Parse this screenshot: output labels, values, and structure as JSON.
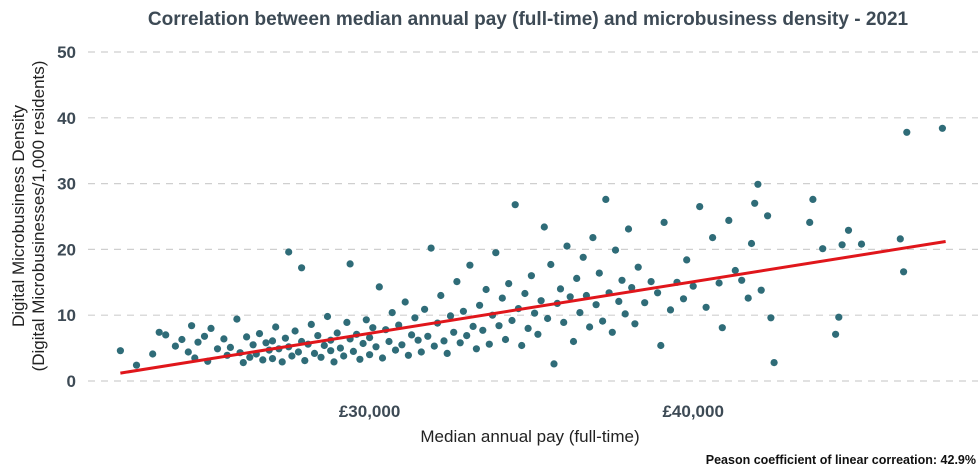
{
  "chart_data": {
    "type": "scatter",
    "title": "Correlation between median annual pay (full-time) and microbusiness density - 2021",
    "xlabel": "Median annual pay (full-time)",
    "ylabel_line1": "Digital Microbusiness Density",
    "ylabel_line2": "(Digital Microbusinesses/1,000 residents)",
    "caption": "Peason coefficient of linear correation: 42.9%",
    "xlim": [
      21300,
      48800
    ],
    "ylim": [
      0,
      50
    ],
    "x_ticks": [
      {
        "value": 30000,
        "label": "£30,000"
      },
      {
        "value": 40000,
        "label": "£40,000"
      }
    ],
    "y_ticks": [
      {
        "value": 0,
        "label": "0"
      },
      {
        "value": 10,
        "label": "10"
      },
      {
        "value": 20,
        "label": "20"
      },
      {
        "value": 30,
        "label": "30"
      },
      {
        "value": 40,
        "label": "40"
      },
      {
        "value": 50,
        "label": "50"
      }
    ],
    "grid": "horizontal dashed",
    "point_color": "#2f6c78",
    "trend_color": "#e0161b",
    "trend_line": {
      "x": [
        22300,
        47800
      ],
      "y": [
        1.2,
        21.2
      ]
    },
    "points": [
      [
        22300,
        4.6
      ],
      [
        22800,
        2.4
      ],
      [
        23300,
        4.1
      ],
      [
        23500,
        7.4
      ],
      [
        23700,
        7.0
      ],
      [
        24000,
        5.3
      ],
      [
        24200,
        6.3
      ],
      [
        24400,
        4.4
      ],
      [
        24500,
        8.4
      ],
      [
        24600,
        3.5
      ],
      [
        24700,
        5.9
      ],
      [
        24900,
        6.8
      ],
      [
        25000,
        3.0
      ],
      [
        25100,
        8.0
      ],
      [
        25300,
        4.9
      ],
      [
        25500,
        6.4
      ],
      [
        25600,
        3.9
      ],
      [
        25700,
        5.1
      ],
      [
        25900,
        9.4
      ],
      [
        26000,
        4.3
      ],
      [
        26100,
        2.8
      ],
      [
        26200,
        6.7
      ],
      [
        26300,
        3.6
      ],
      [
        26400,
        5.5
      ],
      [
        26500,
        4.1
      ],
      [
        26600,
        7.2
      ],
      [
        26700,
        3.2
      ],
      [
        26800,
        5.8
      ],
      [
        26900,
        4.7
      ],
      [
        27000,
        6.1
      ],
      [
        27000,
        3.4
      ],
      [
        27100,
        8.2
      ],
      [
        27200,
        4.9
      ],
      [
        27300,
        2.9
      ],
      [
        27400,
        6.5
      ],
      [
        27500,
        5.2
      ],
      [
        27500,
        19.6
      ],
      [
        27600,
        3.8
      ],
      [
        27700,
        7.6
      ],
      [
        27800,
        4.4
      ],
      [
        27900,
        6.0
      ],
      [
        27900,
        17.2
      ],
      [
        28000,
        3.1
      ],
      [
        28100,
        5.6
      ],
      [
        28200,
        8.6
      ],
      [
        28300,
        4.2
      ],
      [
        28400,
        6.9
      ],
      [
        28500,
        3.6
      ],
      [
        28600,
        5.4
      ],
      [
        28700,
        9.8
      ],
      [
        28800,
        4.6
      ],
      [
        28800,
        6.2
      ],
      [
        28900,
        2.9
      ],
      [
        29000,
        7.3
      ],
      [
        29100,
        5.0
      ],
      [
        29200,
        3.8
      ],
      [
        29300,
        8.9
      ],
      [
        29400,
        6.4
      ],
      [
        29400,
        17.8
      ],
      [
        29500,
        4.5
      ],
      [
        29600,
        7.1
      ],
      [
        29700,
        3.3
      ],
      [
        29800,
        5.7
      ],
      [
        29900,
        9.3
      ],
      [
        30000,
        6.6
      ],
      [
        30000,
        4.0
      ],
      [
        30100,
        8.1
      ],
      [
        30200,
        5.2
      ],
      [
        30300,
        14.3
      ],
      [
        30400,
        3.5
      ],
      [
        30500,
        7.8
      ],
      [
        30600,
        6.0
      ],
      [
        30700,
        10.4
      ],
      [
        30800,
        4.7
      ],
      [
        30900,
        8.5
      ],
      [
        31000,
        5.5
      ],
      [
        31100,
        12.0
      ],
      [
        31200,
        3.9
      ],
      [
        31300,
        7.0
      ],
      [
        31400,
        9.6
      ],
      [
        31500,
        6.2
      ],
      [
        31600,
        4.4
      ],
      [
        31700,
        10.9
      ],
      [
        31800,
        6.8
      ],
      [
        31900,
        20.2
      ],
      [
        32000,
        5.3
      ],
      [
        32100,
        8.8
      ],
      [
        32200,
        13.0
      ],
      [
        32300,
        6.1
      ],
      [
        32400,
        4.2
      ],
      [
        32500,
        9.9
      ],
      [
        32600,
        7.4
      ],
      [
        32700,
        15.1
      ],
      [
        32800,
        5.8
      ],
      [
        32900,
        10.6
      ],
      [
        33000,
        6.9
      ],
      [
        33100,
        17.6
      ],
      [
        33200,
        8.3
      ],
      [
        33300,
        4.9
      ],
      [
        33400,
        11.5
      ],
      [
        33500,
        7.7
      ],
      [
        33600,
        13.9
      ],
      [
        33700,
        5.6
      ],
      [
        33800,
        10.0
      ],
      [
        33900,
        19.5
      ],
      [
        34000,
        8.4
      ],
      [
        34100,
        12.6
      ],
      [
        34200,
        6.3
      ],
      [
        34300,
        14.8
      ],
      [
        34400,
        9.2
      ],
      [
        34500,
        26.8
      ],
      [
        34600,
        11.0
      ],
      [
        34700,
        5.4
      ],
      [
        34800,
        13.3
      ],
      [
        34900,
        8.0
      ],
      [
        35000,
        16.0
      ],
      [
        35100,
        10.3
      ],
      [
        35200,
        7.1
      ],
      [
        35300,
        12.2
      ],
      [
        35400,
        23.4
      ],
      [
        35500,
        9.5
      ],
      [
        35600,
        17.7
      ],
      [
        35700,
        2.6
      ],
      [
        35800,
        11.8
      ],
      [
        35900,
        14.0
      ],
      [
        36000,
        8.9
      ],
      [
        36100,
        20.5
      ],
      [
        36200,
        12.8
      ],
      [
        36300,
        6.0
      ],
      [
        36400,
        15.6
      ],
      [
        36500,
        10.4
      ],
      [
        36600,
        18.8
      ],
      [
        36700,
        13.0
      ],
      [
        36800,
        8.2
      ],
      [
        36900,
        21.8
      ],
      [
        37000,
        11.6
      ],
      [
        37100,
        16.4
      ],
      [
        37200,
        9.1
      ],
      [
        37300,
        27.6
      ],
      [
        37400,
        13.4
      ],
      [
        37500,
        7.4
      ],
      [
        37600,
        19.9
      ],
      [
        37700,
        12.1
      ],
      [
        37800,
        15.3
      ],
      [
        37900,
        10.2
      ],
      [
        38000,
        23.1
      ],
      [
        38100,
        14.2
      ],
      [
        38200,
        8.7
      ],
      [
        38300,
        17.3
      ],
      [
        38500,
        11.9
      ],
      [
        38700,
        15.1
      ],
      [
        38900,
        13.4
      ],
      [
        39000,
        5.4
      ],
      [
        39100,
        24.1
      ],
      [
        39300,
        10.8
      ],
      [
        39500,
        15.0
      ],
      [
        39700,
        12.5
      ],
      [
        39800,
        18.4
      ],
      [
        40000,
        14.4
      ],
      [
        40200,
        26.5
      ],
      [
        40400,
        11.2
      ],
      [
        40600,
        21.8
      ],
      [
        40800,
        14.9
      ],
      [
        40900,
        8.1
      ],
      [
        41100,
        24.4
      ],
      [
        41300,
        16.8
      ],
      [
        41500,
        15.3
      ],
      [
        41700,
        12.6
      ],
      [
        41800,
        20.9
      ],
      [
        41900,
        27.0
      ],
      [
        42000,
        29.9
      ],
      [
        42100,
        13.8
      ],
      [
        42300,
        25.1
      ],
      [
        42400,
        9.6
      ],
      [
        42500,
        2.8
      ],
      [
        43600,
        24.1
      ],
      [
        43700,
        27.6
      ],
      [
        44000,
        20.1
      ],
      [
        44400,
        7.1
      ],
      [
        44500,
        9.7
      ],
      [
        44600,
        20.7
      ],
      [
        44800,
        22.9
      ],
      [
        45200,
        20.8
      ],
      [
        46400,
        21.6
      ],
      [
        46500,
        16.6
      ],
      [
        46600,
        37.8
      ],
      [
        47700,
        38.4
      ]
    ]
  }
}
